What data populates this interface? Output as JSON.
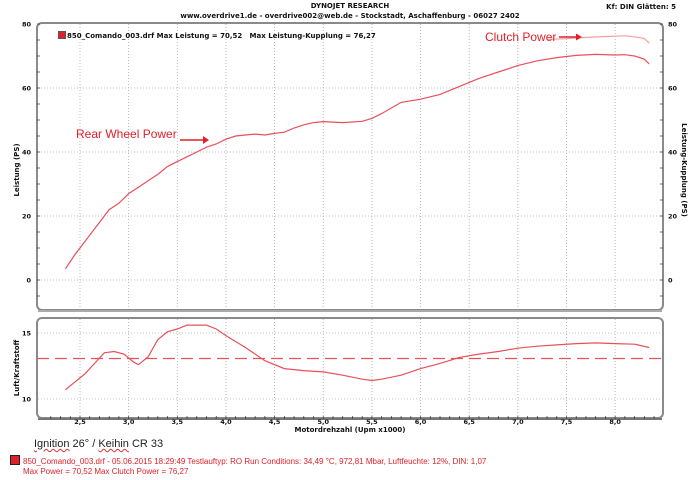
{
  "header": {
    "title": "DYNOJET RESEARCH",
    "subtitle": "www.overdrive1.de - overdrive002@web.de - Stockstadt, Aschaffenburg - 06027 2402",
    "right_info": "Kf: DIN  Glätten: 5"
  },
  "top_legend": {
    "file": "850_Comando_003.drf",
    "max_power_text": "Max Leistung = 70,52",
    "max_clutch_text": "Max Leistung-Kupplung = 76,27"
  },
  "annotations": {
    "rear_wheel": "Rear Wheel Power",
    "clutch": "Clutch Power",
    "ignition_prefix": "Ignition",
    "ignition_mid": " 26° / ",
    "keihin": "Keihin",
    "ignition_suffix": " CR 33"
  },
  "footer": {
    "line1": "850_Comando_003.drf - 05.06.2015 18:29:49  Testlauftyp: RO  Run Conditions: 34,49 °C, 972,81 Mbar,  Luftfeuchte: 12%, DIN: 1,07",
    "line2": "Max Power = 70,52  Max Clutch Power = 76,27"
  },
  "colors": {
    "series": "#e8505a",
    "annotation": "#e0202a",
    "frame": "#888888"
  },
  "chart_data": [
    {
      "type": "line",
      "title": "DYNOJET RESEARCH",
      "xlabel": "Motordrehzahl (Upm x1000)",
      "ylabel": "Leistung (PS)",
      "ylabel_right": "Leistung-Kupplung (PS)",
      "xlim": [
        2.1,
        8.45
      ],
      "ylim": [
        -8,
        80
      ],
      "x_ticks": [
        "2,5",
        "3,0",
        "3,5",
        "4,0",
        "4,5",
        "5,0",
        "5,5",
        "6,0",
        "6,5",
        "7,0",
        "7,5",
        "8,0"
      ],
      "y_ticks": [
        "0",
        "20",
        "40",
        "60",
        "80"
      ],
      "grid": true,
      "series": [
        {
          "name": "Rear Wheel Power (Leistung)",
          "x": [
            2.35,
            2.45,
            2.5,
            2.6,
            2.7,
            2.8,
            2.9,
            3.0,
            3.1,
            3.2,
            3.3,
            3.4,
            3.5,
            3.6,
            3.7,
            3.8,
            3.9,
            4.0,
            4.1,
            4.2,
            4.3,
            4.4,
            4.5,
            4.6,
            4.7,
            4.8,
            4.9,
            5.0,
            5.2,
            5.4,
            5.5,
            5.6,
            5.8,
            6.0,
            6.2,
            6.4,
            6.6,
            6.8,
            7.0,
            7.2,
            7.4,
            7.6,
            7.8,
            8.0,
            8.1,
            8.2,
            8.3,
            8.35
          ],
          "values": [
            3.5,
            8,
            10,
            14,
            18,
            22,
            24,
            27,
            29,
            31,
            33,
            35.5,
            37,
            38.5,
            40,
            41.5,
            42.5,
            44,
            45,
            45.3,
            45.6,
            45.3,
            45.8,
            46.2,
            47.5,
            48.5,
            49.2,
            49.5,
            49.2,
            49.6,
            50.5,
            52,
            55.5,
            56.5,
            58,
            60.5,
            63,
            65,
            67,
            68.5,
            69.5,
            70.2,
            70.5,
            70.3,
            70.4,
            70,
            69,
            67.5
          ]
        },
        {
          "name": "Clutch Power (Leistung-Kupplung)",
          "x": [
            7.3,
            7.5,
            7.7,
            7.9,
            8.0,
            8.1,
            8.2,
            8.3,
            8.35
          ],
          "values": [
            75.2,
            75.4,
            75.8,
            76.1,
            76.2,
            76.3,
            76,
            75.5,
            74
          ]
        }
      ]
    },
    {
      "type": "line",
      "xlabel": "Motordrehzahl (Upm x1000)",
      "ylabel": "Luft/Kraftstoff",
      "xlim": [
        2.1,
        8.45
      ],
      "ylim": [
        9,
        16.2
      ],
      "y_ticks": [
        "10",
        "15"
      ],
      "reference_line": 13,
      "grid": true,
      "series": [
        {
          "name": "AFR",
          "x": [
            2.35,
            2.45,
            2.55,
            2.65,
            2.75,
            2.85,
            2.95,
            3.05,
            3.1,
            3.2,
            3.3,
            3.4,
            3.5,
            3.6,
            3.7,
            3.8,
            3.9,
            4.0,
            4.2,
            4.4,
            4.6,
            4.8,
            5.0,
            5.2,
            5.4,
            5.5,
            5.6,
            5.8,
            6.0,
            6.2,
            6.4,
            6.6,
            6.8,
            7.0,
            7.2,
            7.4,
            7.6,
            7.8,
            8.0,
            8.2,
            8.35
          ],
          "values": [
            10.7,
            11.3,
            11.9,
            12.7,
            13.5,
            13.6,
            13.4,
            12.8,
            12.6,
            13.2,
            14.5,
            15.1,
            15.3,
            15.6,
            15.6,
            15.6,
            15.3,
            14.8,
            13.9,
            12.9,
            12.3,
            12.15,
            12.05,
            11.8,
            11.5,
            11.4,
            11.5,
            11.8,
            12.3,
            12.7,
            13.15,
            13.4,
            13.6,
            13.85,
            14.0,
            14.1,
            14.2,
            14.25,
            14.2,
            14.15,
            13.9
          ]
        }
      ]
    }
  ]
}
